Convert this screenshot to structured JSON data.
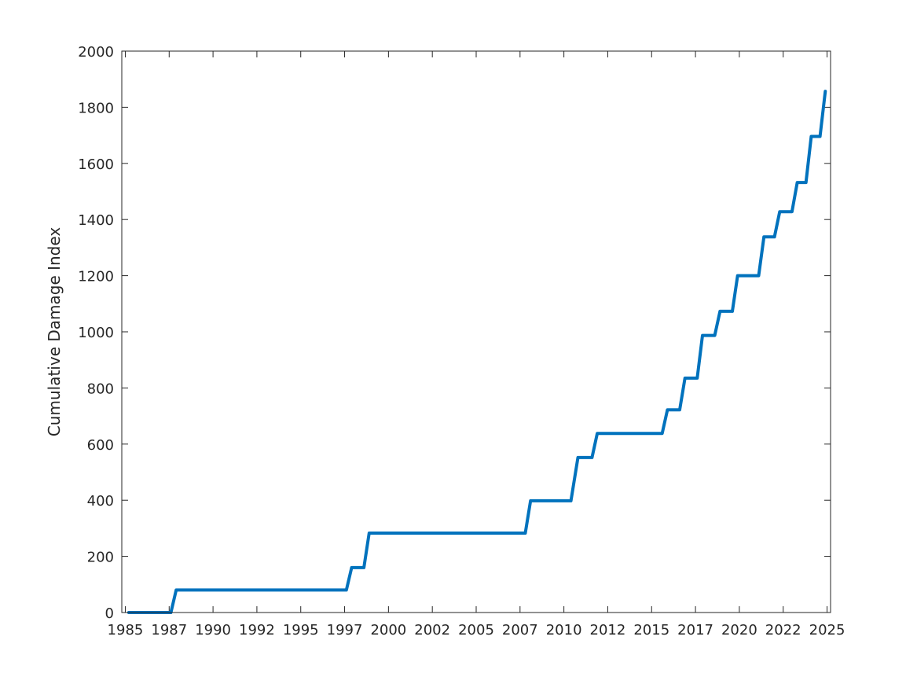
{
  "chart_data": {
    "type": "line",
    "title": "",
    "xlabel": "",
    "ylabel": "Cumulative Damage Index",
    "xlim": [
      1985.8,
      2026.2
    ],
    "ylim": [
      0,
      2000
    ],
    "x_ticks": [
      {
        "value": 1986.0,
        "label": "1985"
      },
      {
        "value": 1988.5,
        "label": "1987"
      },
      {
        "value": 1991.0,
        "label": "1990"
      },
      {
        "value": 1993.5,
        "label": "1992"
      },
      {
        "value": 1996.0,
        "label": "1995"
      },
      {
        "value": 1998.5,
        "label": "1997"
      },
      {
        "value": 2001.0,
        "label": "2000"
      },
      {
        "value": 2003.5,
        "label": "2002"
      },
      {
        "value": 2006.0,
        "label": "2005"
      },
      {
        "value": 2008.5,
        "label": "2007"
      },
      {
        "value": 2011.0,
        "label": "2010"
      },
      {
        "value": 2013.5,
        "label": "2012"
      },
      {
        "value": 2016.0,
        "label": "2015"
      },
      {
        "value": 2018.5,
        "label": "2017"
      },
      {
        "value": 2021.0,
        "label": "2020"
      },
      {
        "value": 2023.5,
        "label": "2022"
      },
      {
        "value": 2026.0,
        "label": "2025"
      }
    ],
    "y_ticks": [
      0,
      200,
      400,
      600,
      800,
      1000,
      1200,
      1400,
      1600,
      1800,
      2000
    ],
    "grid": false,
    "box": true,
    "series": [
      {
        "color": "#0072BD",
        "x": [
          1986.2,
          1988.6,
          1988.9,
          1998.6,
          1998.9,
          1999.6,
          1999.9,
          2008.8,
          2009.1,
          2011.4,
          2011.8,
          2012.6,
          2012.9,
          2016.6,
          2016.9,
          2017.6,
          2017.9,
          2018.6,
          2018.9,
          2019.6,
          2019.9,
          2020.6,
          2020.9,
          2022.1,
          2022.4,
          2023.0,
          2023.3,
          2024.0,
          2024.3,
          2024.8,
          2025.1,
          2025.6,
          2025.9
        ],
        "y": [
          0,
          0,
          80,
          80,
          160,
          160,
          283,
          283,
          398,
          398,
          552,
          552,
          638,
          638,
          722,
          722,
          835,
          835,
          987,
          987,
          1073,
          1073,
          1200,
          1200,
          1338,
          1338,
          1428,
          1428,
          1532,
          1532,
          1696,
          1696,
          1857
        ]
      }
    ]
  }
}
